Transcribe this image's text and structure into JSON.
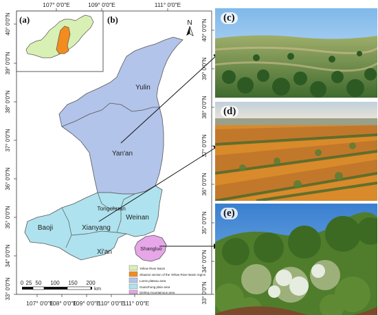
{
  "map": {
    "panel_a_label": "(a)",
    "panel_b_label": "(b)",
    "north_label": "N",
    "lon_ticks_top": [
      "107° 0′0″E",
      "109° 0′0″E",
      "111° 0′0″E"
    ],
    "lon_ticks_bottom": [
      "107° 0′0″E",
      "108° 0′0″E",
      "109° 0′0″E",
      "110° 0′0″E",
      "111° 0′0″E"
    ],
    "lat_ticks_left": [
      "40° 0′0″N",
      "39° 0′0″N",
      "38° 0′0″N",
      "37° 0′0″N",
      "36° 0′0″N",
      "35° 0′0″N",
      "34° 0′0″N",
      "33° 0′0″N"
    ],
    "lat_ticks_right": [
      "40° 0′0″N",
      "39° 0′0″N",
      "38° 0′0″N",
      "37° 0′0″N",
      "36° 0′0″N",
      "35° 0′0″N",
      "34° 0′0″N",
      "33° 0′0″N"
    ],
    "regions": [
      "Yulin",
      "Yan'an",
      "Tongchuan",
      "Weinan",
      "Baoji",
      "Xianyang",
      "Xi'an",
      "Shangluo"
    ],
    "scale_ticks": [
      "0",
      "25",
      "50",
      "100",
      "150",
      "200"
    ],
    "scale_unit": "km",
    "legend": [
      {
        "label": "Yellow River Basin",
        "color": "#d8f0b4"
      },
      {
        "label": "Shaanxi section of the Yellow River Basin region",
        "color": "#f28c1e"
      },
      {
        "label": "Loess plateau area",
        "color": "#b2c4ea"
      },
      {
        "label": "Guanzhong plain area",
        "color": "#aee2ee"
      },
      {
        "label": "Qinling mountainous area",
        "color": "#e6a6e8"
      }
    ]
  },
  "photos": [
    {
      "label": "(c)"
    },
    {
      "label": "(d)"
    },
    {
      "label": "(e)"
    }
  ]
}
